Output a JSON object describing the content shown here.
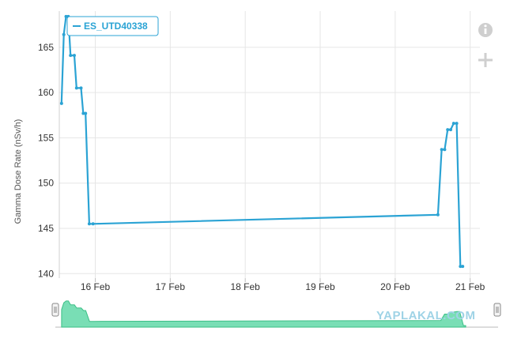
{
  "colors": {
    "series": "#2ba3d4",
    "grid": "#e6e6e6",
    "navigator_fill": "#62d8a8",
    "navigator_line": "#3bbf86",
    "icon": "#cfcfcf"
  },
  "icons": {
    "info": "info-icon",
    "zoom": "plus-icon",
    "handle": "drag-handle-icon"
  },
  "watermark": "YAPLAKAL.COM",
  "chart_data": {
    "type": "line",
    "title": "",
    "xlabel": "",
    "ylabel": "Gamma Dose Rate (nSv/h)",
    "ylim": [
      139.5,
      169
    ],
    "yticks": [
      140,
      145,
      150,
      155,
      160,
      165
    ],
    "xlim": [
      15.52,
      21.13
    ],
    "xticks": [
      16,
      17,
      18,
      19,
      20,
      21
    ],
    "xtick_labels": [
      "16 Feb",
      "17 Feb",
      "18 Feb",
      "19 Feb",
      "20 Feb",
      "21 Feb"
    ],
    "grid": true,
    "legend": "top-left",
    "series": [
      {
        "name": "ES_UTD40338",
        "points": [
          [
            15.55,
            158.8
          ],
          [
            15.58,
            166.4
          ],
          [
            15.61,
            168.4
          ],
          [
            15.64,
            168.4
          ],
          [
            15.67,
            164.1
          ],
          [
            15.72,
            164.1
          ],
          [
            15.75,
            160.5
          ],
          [
            15.81,
            160.5
          ],
          [
            15.84,
            157.7
          ],
          [
            15.87,
            157.7
          ],
          [
            15.92,
            145.5
          ],
          [
            15.97,
            145.5
          ],
          [
            20.57,
            146.5
          ],
          [
            20.62,
            153.7
          ],
          [
            20.66,
            153.7
          ],
          [
            20.7,
            155.9
          ],
          [
            20.74,
            155.9
          ],
          [
            20.78,
            156.6
          ],
          [
            20.82,
            156.6
          ],
          [
            20.87,
            140.8
          ],
          [
            20.9,
            140.8
          ]
        ]
      }
    ]
  }
}
